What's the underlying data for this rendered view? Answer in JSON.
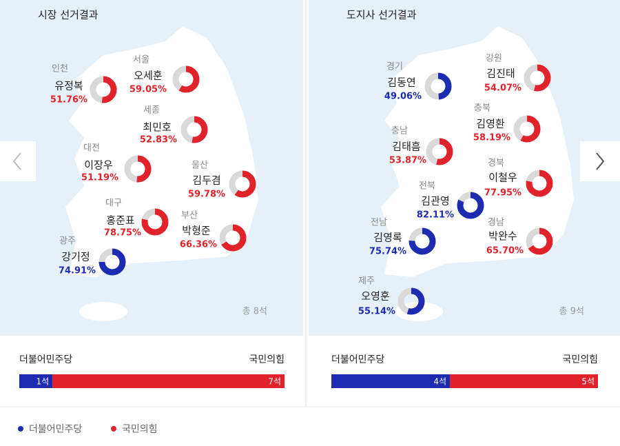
{
  "panels": [
    {
      "title": "시장 선거결과",
      "total": "총 8석",
      "results": [
        {
          "region": "인천",
          "name": "유정복",
          "value": 51.76,
          "value_label": "51.76%",
          "color": "#e0222b"
        },
        {
          "region": "서울",
          "name": "오세훈",
          "value": 59.05,
          "value_label": "59.05%",
          "color": "#e0222b"
        },
        {
          "region": "세종",
          "name": "최민호",
          "value": 52.83,
          "value_label": "52.83%",
          "color": "#e0222b"
        },
        {
          "region": "대전",
          "name": "이장우",
          "value": 51.19,
          "value_label": "51.19%",
          "color": "#e0222b"
        },
        {
          "region": "울산",
          "name": "김두겸",
          "value": 59.78,
          "value_label": "59.78%",
          "color": "#e0222b"
        },
        {
          "region": "대구",
          "name": "홍준표",
          "value": 78.75,
          "value_label": "78.75%",
          "color": "#e0222b"
        },
        {
          "region": "부산",
          "name": "박형준",
          "value": 66.36,
          "value_label": "66.36%",
          "color": "#e0222b"
        },
        {
          "region": "광주",
          "name": "강기정",
          "value": 74.91,
          "value_label": "74.91%",
          "color": "#1c2bb0"
        }
      ],
      "seats": {
        "left_name": "더불어민주당",
        "left_value": 1,
        "left_label": "1석",
        "right_name": "국민의힘",
        "right_value": 7,
        "right_label": "7석"
      }
    },
    {
      "title": "도지사 선거결과",
      "total": "총 9석",
      "results": [
        {
          "region": "경기",
          "name": "김동연",
          "value": 49.06,
          "value_label": "49.06%",
          "color": "#1c2bb0"
        },
        {
          "region": "강원",
          "name": "김진태",
          "value": 54.07,
          "value_label": "54.07%",
          "color": "#e0222b"
        },
        {
          "region": "충북",
          "name": "김영환",
          "value": 58.19,
          "value_label": "58.19%",
          "color": "#e0222b"
        },
        {
          "region": "충남",
          "name": "김태흠",
          "value": 53.87,
          "value_label": "53.87%",
          "color": "#e0222b"
        },
        {
          "region": "경북",
          "name": "이철우",
          "value": 77.95,
          "value_label": "77.95%",
          "color": "#e0222b"
        },
        {
          "region": "전북",
          "name": "김관영",
          "value": 82.11,
          "value_label": "82.11%",
          "color": "#1c2bb0"
        },
        {
          "region": "전남",
          "name": "김영록",
          "value": 75.74,
          "value_label": "75.74%",
          "color": "#1c2bb0"
        },
        {
          "region": "경남",
          "name": "박완수",
          "value": 65.7,
          "value_label": "65.70%",
          "color": "#e0222b"
        },
        {
          "region": "제주",
          "name": "오영훈",
          "value": 55.14,
          "value_label": "55.14%",
          "color": "#1c2bb0"
        }
      ],
      "seats": {
        "left_name": "더불어민주당",
        "left_value": 4,
        "left_label": "4석",
        "right_name": "국민의힘",
        "right_value": 5,
        "right_label": "5석"
      }
    }
  ],
  "legend": [
    {
      "name": "더불어민주당",
      "color": "#1c2bb0"
    },
    {
      "name": "국민의힘",
      "color": "#e0222b"
    }
  ]
}
